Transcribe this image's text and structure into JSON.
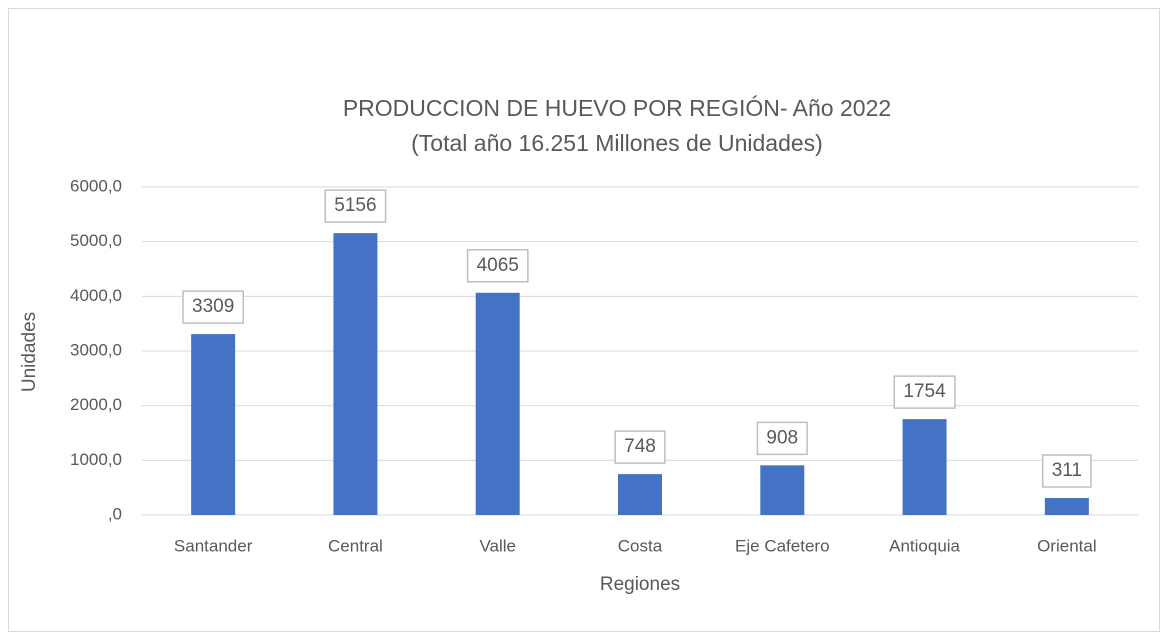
{
  "chart_data": {
    "type": "bar",
    "title": "PRODUCCION DE HUEVO POR REGIÓN- Año 2022",
    "subtitle": "(Total año 16.251 Millones de Unidades)",
    "x_label": "Regiones",
    "y_label": "Unidades",
    "categories": [
      "Santander",
      "Central",
      "Valle",
      "Costa",
      "Eje Cafetero",
      "Antioquia",
      "Oriental"
    ],
    "values": [
      3309,
      5156,
      4065,
      748,
      908,
      1754,
      311
    ],
    "color": "#4472c4",
    "ylim": [
      0,
      6000
    ],
    "yticks": [
      {
        "value": 0,
        "label": ",0"
      },
      {
        "value": 1000,
        "label": "1000,0"
      },
      {
        "value": 2000,
        "label": "2000,0"
      },
      {
        "value": 3000,
        "label": "3000,0"
      },
      {
        "value": 4000,
        "label": "4000,0"
      },
      {
        "value": 5000,
        "label": "5000,0"
      },
      {
        "value": 6000,
        "label": "6000,0"
      }
    ],
    "grid": true
  }
}
